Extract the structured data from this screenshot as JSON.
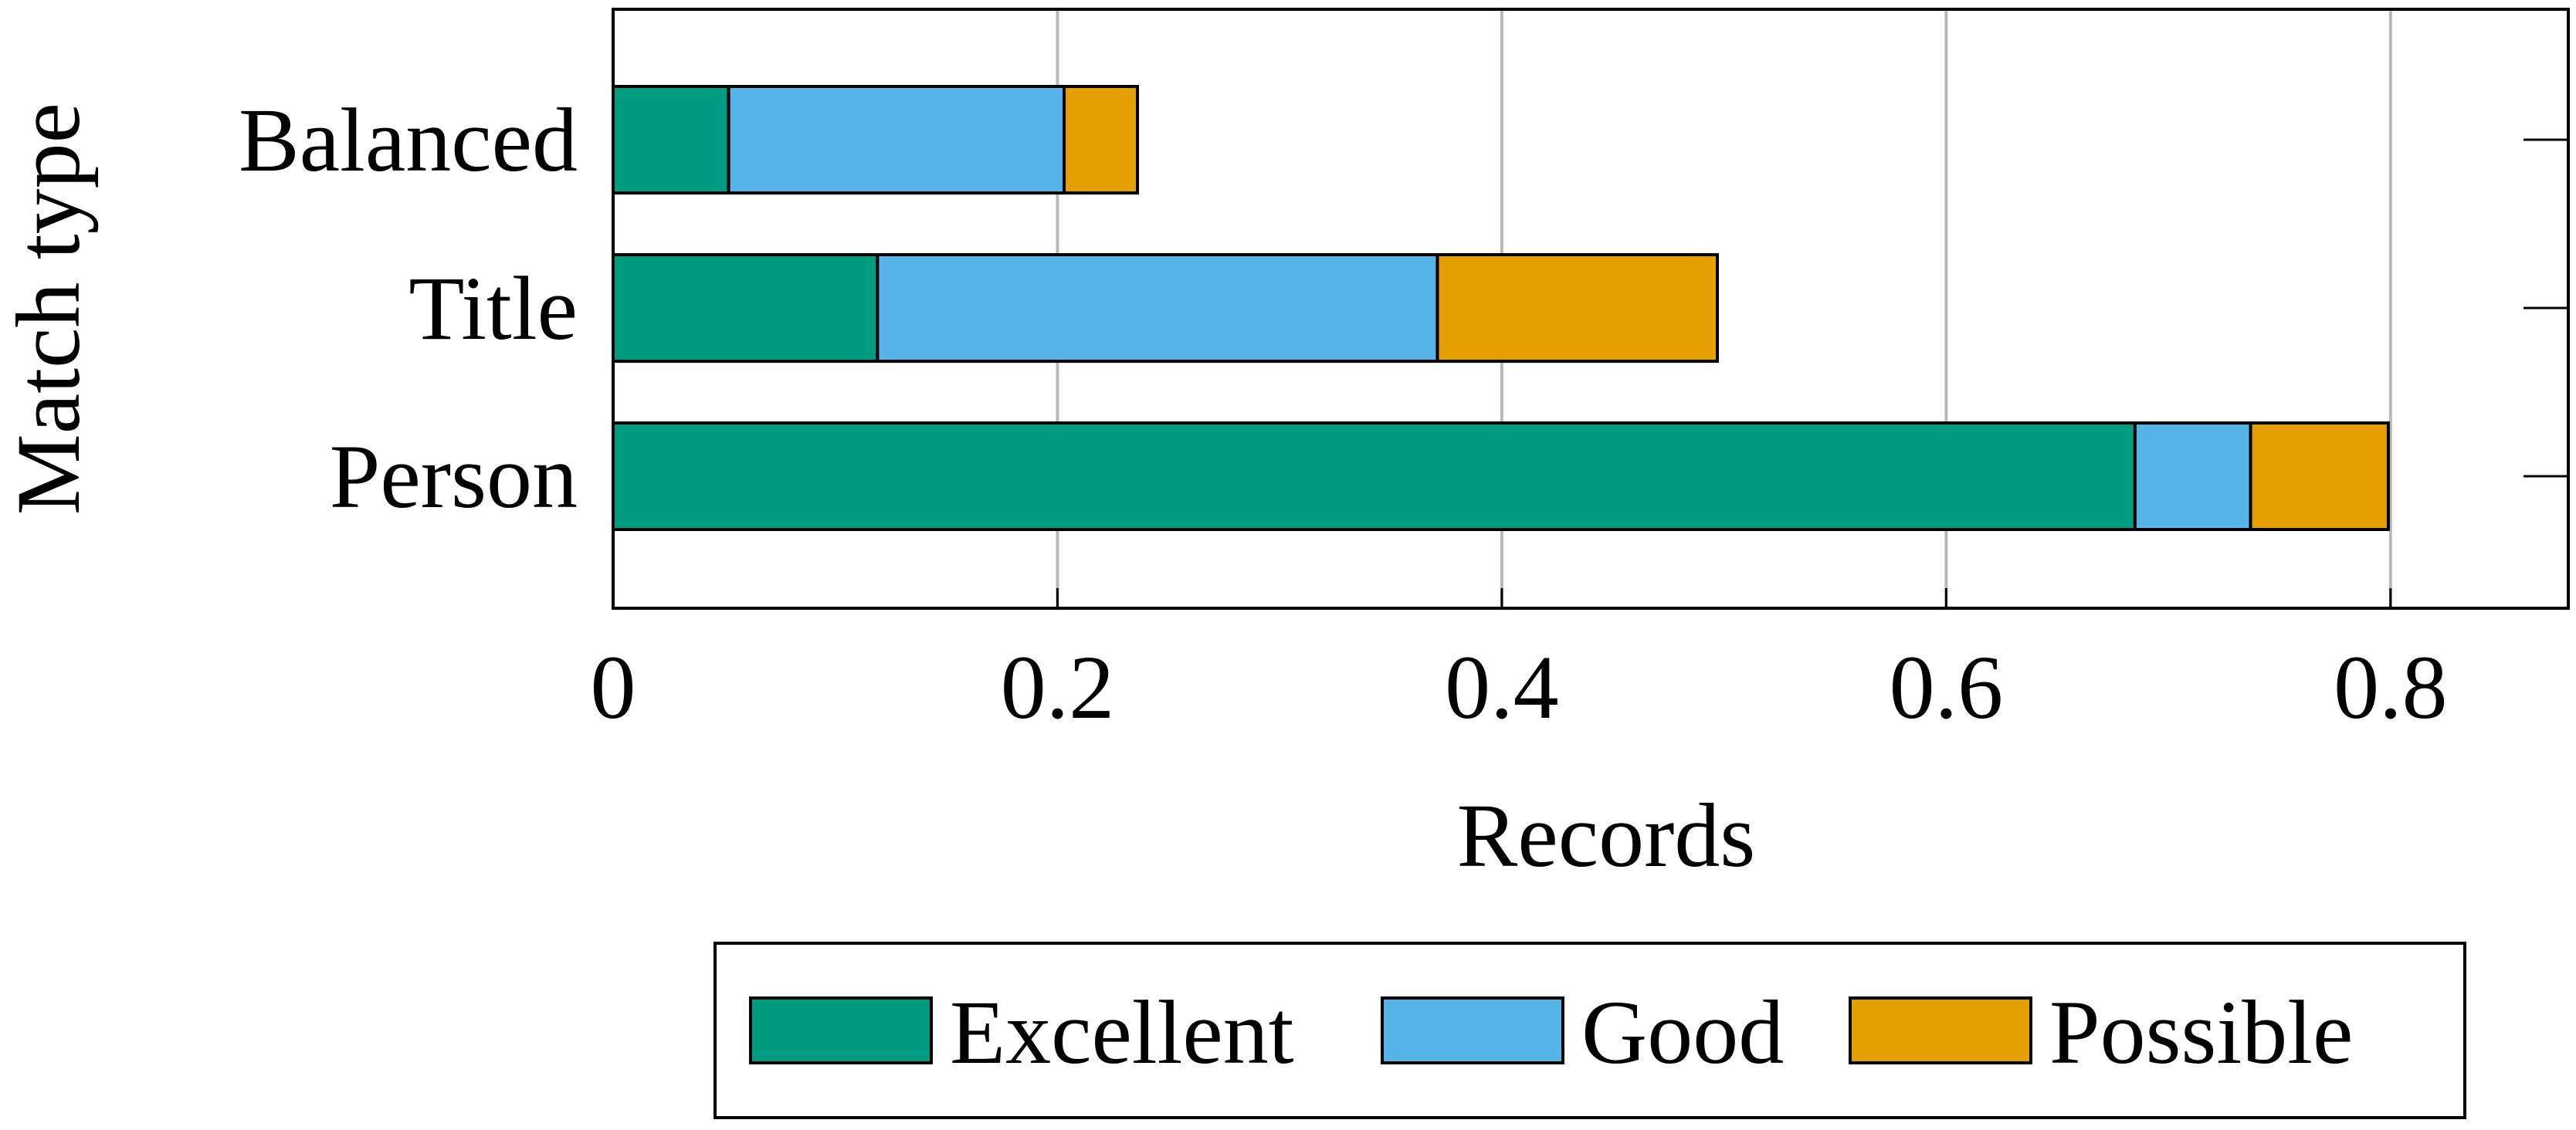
{
  "chart_data": {
    "type": "bar",
    "orientation": "horizontal",
    "stacked": true,
    "categories": [
      "Person",
      "Title",
      "Balanced"
    ],
    "series": [
      {
        "name": "Excellent",
        "color": "#009B81",
        "values": [
          0.685,
          0.119,
          0.052
        ]
      },
      {
        "name": "Good",
        "color": "#56B4E9",
        "values": [
          0.052,
          0.252,
          0.151
        ]
      },
      {
        "name": "Possible",
        "color": "#E69F00",
        "values": [
          0.062,
          0.126,
          0.033
        ]
      }
    ],
    "xlabel": "Records",
    "ylabel": "Match type",
    "xlim": [
      0,
      0.88
    ],
    "xticks": [
      0,
      0.2,
      0.4,
      0.6,
      0.8
    ],
    "xtick_labels": [
      "0",
      "0.2",
      "0.4",
      "0.6",
      "0.8"
    ],
    "grid": "vertical",
    "legend_position": "bottom"
  }
}
